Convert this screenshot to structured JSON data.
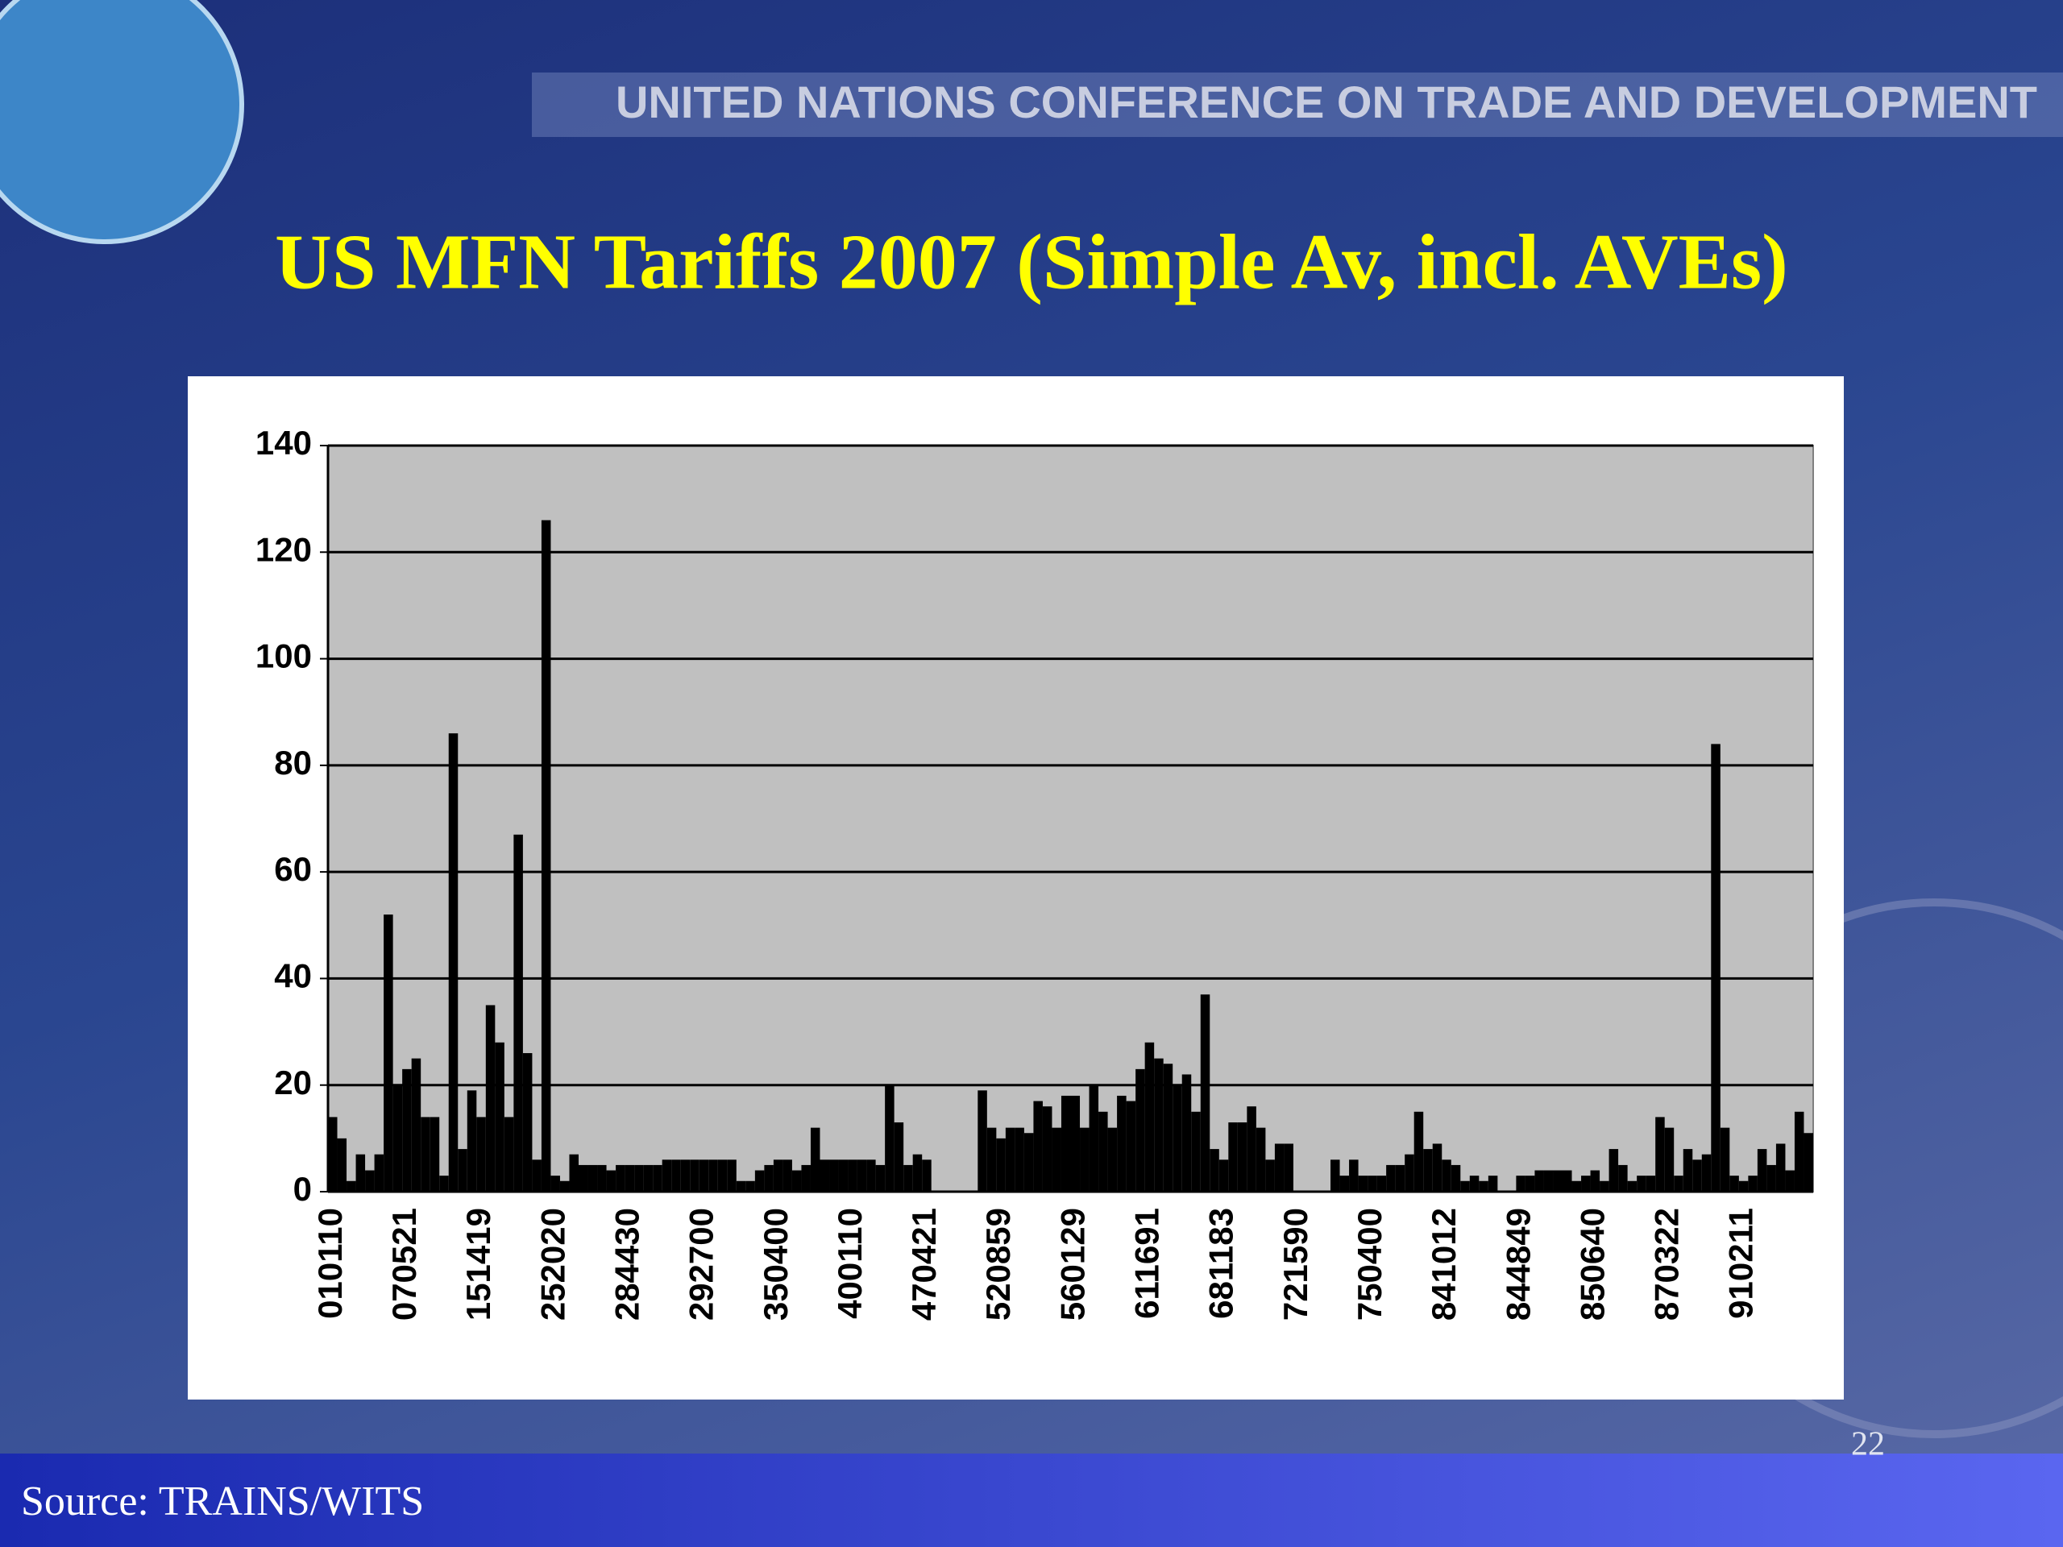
{
  "slide": {
    "header": "UNITED NATIONS CONFERENCE ON TRADE AND DEVELOPMENT",
    "page_number": "22",
    "source": "Source: TRAINS/WITS"
  },
  "chart_data": {
    "type": "bar",
    "title": "US MFN Tariffs 2007 (Simple Av, incl. AVEs)",
    "color": "#000000",
    "plot_background": "#c0c0c0",
    "grid": true,
    "ylim": [
      0,
      140
    ],
    "yticks": [
      0,
      20,
      40,
      60,
      80,
      100,
      120,
      140
    ],
    "categories": [
      "010110",
      null,
      null,
      null,
      null,
      null,
      null,
      null,
      "070521",
      null,
      null,
      null,
      null,
      null,
      null,
      null,
      "151419",
      null,
      null,
      null,
      null,
      null,
      null,
      null,
      "252020",
      null,
      null,
      null,
      null,
      null,
      null,
      null,
      "284430",
      null,
      null,
      null,
      null,
      null,
      null,
      null,
      "292700",
      null,
      null,
      null,
      null,
      null,
      null,
      null,
      "350400",
      null,
      null,
      null,
      null,
      null,
      null,
      null,
      "400110",
      null,
      null,
      null,
      null,
      null,
      null,
      null,
      "470421",
      null,
      null,
      null,
      null,
      null,
      null,
      null,
      "520859",
      null,
      null,
      null,
      null,
      null,
      null,
      null,
      "560129",
      null,
      null,
      null,
      null,
      null,
      null,
      null,
      "611691",
      null,
      null,
      null,
      null,
      null,
      null,
      null,
      "681183",
      null,
      null,
      null,
      null,
      null,
      null,
      null,
      "721590",
      null,
      null,
      null,
      null,
      null,
      null,
      null,
      "750400",
      null,
      null,
      null,
      null,
      null,
      null,
      null,
      "841012",
      null,
      null,
      null,
      null,
      null,
      null,
      null,
      "844849",
      null,
      null,
      null,
      null,
      null,
      null,
      null,
      "850640",
      null,
      null,
      null,
      null,
      null,
      null,
      null,
      "870322",
      null,
      null,
      null,
      null,
      null,
      null,
      null,
      "910211",
      null,
      null,
      null,
      null,
      null,
      null,
      null
    ],
    "values": [
      14,
      10,
      2,
      7,
      4,
      7,
      52,
      20,
      23,
      25,
      14,
      14,
      3,
      86,
      8,
      19,
      14,
      35,
      28,
      14,
      67,
      26,
      6,
      126,
      3,
      2,
      7,
      5,
      5,
      5,
      4,
      5,
      5,
      5,
      5,
      5,
      6,
      6,
      6,
      6,
      6,
      6,
      6,
      6,
      2,
      2,
      4,
      5,
      6,
      6,
      4,
      5,
      12,
      6,
      6,
      6,
      6,
      6,
      6,
      5,
      20,
      13,
      5,
      7,
      6,
      0,
      0,
      0,
      0,
      0,
      19,
      12,
      10,
      12,
      12,
      11,
      17,
      16,
      12,
      18,
      18,
      12,
      20,
      15,
      12,
      18,
      17,
      23,
      28,
      25,
      24,
      20,
      22,
      15,
      37,
      8,
      6,
      13,
      13,
      16,
      12,
      6,
      9,
      9,
      0,
      0,
      0,
      0,
      6,
      3,
      6,
      3,
      3,
      3,
      5,
      5,
      7,
      15,
      8,
      9,
      6,
      5,
      2,
      3,
      2,
      3,
      0,
      0,
      3,
      3,
      4,
      4,
      4,
      4,
      2,
      3,
      4,
      2,
      8,
      5,
      2,
      3,
      3,
      14,
      12,
      3,
      8,
      6,
      7,
      84,
      12,
      3,
      2,
      3,
      8,
      5,
      9,
      4,
      15,
      11
    ]
  }
}
